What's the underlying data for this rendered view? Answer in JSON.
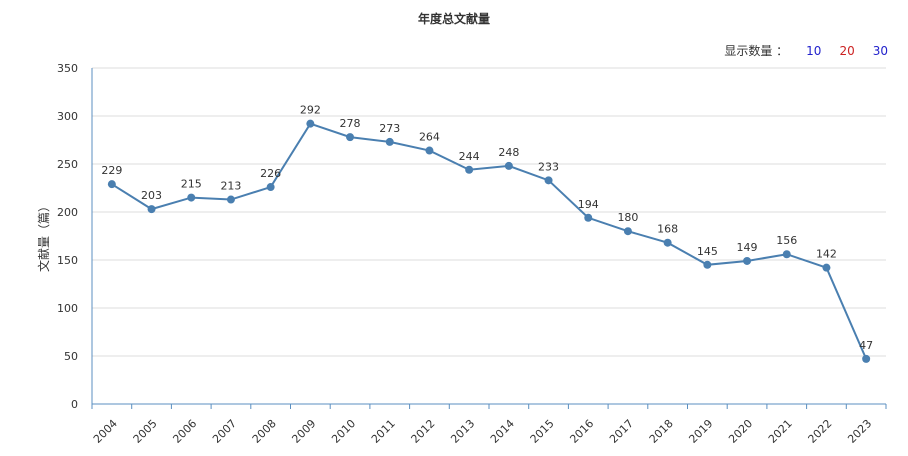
{
  "chart_data": {
    "type": "line",
    "title": "年度总文献量",
    "ylabel": "文献量（篇）",
    "xlabel": "",
    "categories": [
      "2004",
      "2005",
      "2006",
      "2007",
      "2008",
      "2009",
      "2010",
      "2011",
      "2012",
      "2013",
      "2014",
      "2015",
      "2016",
      "2017",
      "2018",
      "2019",
      "2020",
      "2021",
      "2022",
      "2023"
    ],
    "values": [
      229,
      203,
      215,
      213,
      226,
      292,
      278,
      273,
      264,
      244,
      248,
      233,
      194,
      180,
      168,
      145,
      149,
      156,
      142,
      47
    ],
    "ylim": [
      0,
      350
    ],
    "yticks": [
      0,
      50,
      100,
      150,
      200,
      250,
      300,
      350
    ],
    "grid": true,
    "series_color": "#4a7fb0"
  },
  "controls": {
    "display_label": "显示数量 ：",
    "options": [
      {
        "label": "10",
        "color": "#2222cc"
      },
      {
        "label": "20",
        "color": "#cc2222"
      },
      {
        "label": "30",
        "color": "#2222cc"
      }
    ]
  }
}
